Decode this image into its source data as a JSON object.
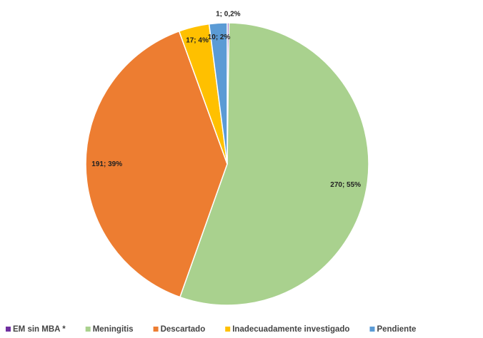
{
  "chart_data": {
    "type": "pie",
    "categories": [
      "EM sin MBA *",
      "Meningitis",
      "Descartado",
      "Inadecuadamente investigado",
      "Pendiente"
    ],
    "values": [
      1,
      270,
      191,
      17,
      10
    ],
    "value_labels": [
      "1; 0,2%",
      "270; 55%",
      "191; 39%",
      "17; 4%",
      "10; 2%"
    ],
    "colors": [
      "#7030a0",
      "#a9d18e",
      "#ed7d31",
      "#ffc000",
      "#5b9bd5"
    ],
    "legend": "bottom"
  }
}
